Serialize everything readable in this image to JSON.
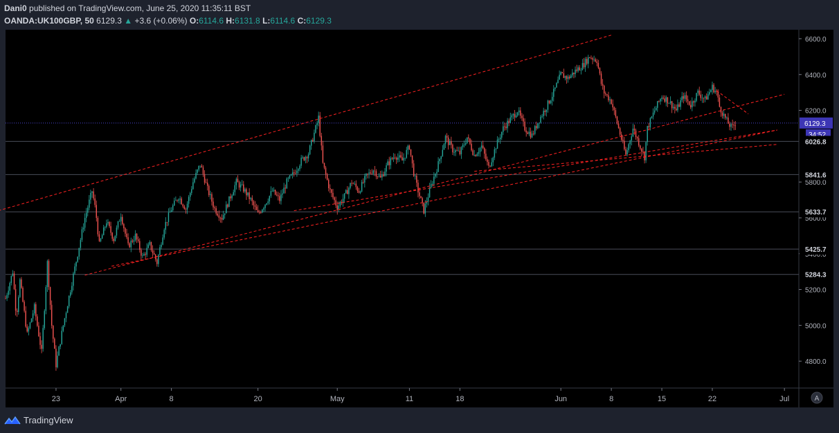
{
  "header": {
    "author": "Dani0",
    "published_text": "published on TradingView.com, June 25, 2020 11:35:11 BST",
    "symbol": "OANDA:UK100GBP, 50",
    "last": "6129.3",
    "change": "+3.6 (+0.06%)",
    "o_label": "O:",
    "o_value": "6114.6",
    "h_label": "H:",
    "h_value": "6131.8",
    "l_label": "L:",
    "l_value": "6114.6",
    "c_label": "C:",
    "c_value": "6129.3"
  },
  "footer": {
    "brand": "TradingView",
    "scale_button": "A"
  },
  "colors": {
    "background": "#000000",
    "frame": "#1e222d",
    "up": "#26a69a",
    "down": "#ef5350",
    "trendline": "#ff2222",
    "price_label": "#3d36b5"
  },
  "chart_data": {
    "type": "candlestick",
    "title": "",
    "xlabel": "",
    "ylabel": "",
    "ylim": [
      4650,
      6650
    ],
    "xlim_days": [
      "Mar 16",
      "Jul 4"
    ],
    "y_ticks": [
      "6600.0",
      "6400.0",
      "6200.0",
      "5800.0",
      "5600.0",
      "5400.0",
      "5200.0",
      "5000.0",
      "4800.0"
    ],
    "y_tick_values": [
      6600,
      6400,
      6200,
      5800,
      5600,
      5400,
      5200,
      5000,
      4800
    ],
    "x_ticks": [
      {
        "label": "23",
        "day": 7
      },
      {
        "label": "Apr",
        "day": 16
      },
      {
        "label": "8",
        "day": 23
      },
      {
        "label": "20",
        "day": 35
      },
      {
        "label": "May",
        "day": 46
      },
      {
        "label": "11",
        "day": 56
      },
      {
        "label": "18",
        "day": 63
      },
      {
        "label": "Jun",
        "day": 77
      },
      {
        "label": "8",
        "day": 84
      },
      {
        "label": "15",
        "day": 91
      },
      {
        "label": "22",
        "day": 98
      },
      {
        "label": "Jul",
        "day": 108
      }
    ],
    "price_labels": [
      {
        "text": "6129.3",
        "value": 6129.3,
        "type": "current",
        "extra": "34:52"
      },
      {
        "text": "6026.8",
        "value": 6026.8,
        "type": "level"
      },
      {
        "text": "5841.6",
        "value": 5841.6,
        "type": "level"
      },
      {
        "text": "5633.7",
        "value": 5633.7,
        "type": "level"
      },
      {
        "text": "5425.7",
        "value": 5425.7,
        "type": "level"
      },
      {
        "text": "5284.3",
        "value": 5284.3,
        "type": "level"
      }
    ],
    "horizontal_levels": [
      6026.8,
      5841.6,
      5633.7,
      5425.7,
      5284.3
    ],
    "current_price": 6129.3,
    "price_path": [
      [
        0,
        5150
      ],
      [
        1,
        5300
      ],
      [
        1.5,
        5050
      ],
      [
        2,
        5250
      ],
      [
        3,
        4950
      ],
      [
        4,
        5100
      ],
      [
        5,
        4850
      ],
      [
        5.8,
        5350
      ],
      [
        6.4,
        5000
      ],
      [
        7,
        4780
      ],
      [
        8,
        5000
      ],
      [
        9,
        5200
      ],
      [
        10,
        5400
      ],
      [
        11,
        5600
      ],
      [
        12,
        5750
      ],
      [
        12.5,
        5640
      ],
      [
        13,
        5450
      ],
      [
        14,
        5580
      ],
      [
        15,
        5480
      ],
      [
        16,
        5620
      ],
      [
        17,
        5440
      ],
      [
        18,
        5500
      ],
      [
        19,
        5380
      ],
      [
        20,
        5450
      ],
      [
        21,
        5350
      ],
      [
        22,
        5550
      ],
      [
        23,
        5650
      ],
      [
        24,
        5720
      ],
      [
        25,
        5650
      ],
      [
        26,
        5800
      ],
      [
        27,
        5900
      ],
      [
        28,
        5760
      ],
      [
        29,
        5650
      ],
      [
        30,
        5600
      ],
      [
        31,
        5700
      ],
      [
        32,
        5800
      ],
      [
        33,
        5760
      ],
      [
        34,
        5700
      ],
      [
        35,
        5620
      ],
      [
        36,
        5680
      ],
      [
        37,
        5750
      ],
      [
        38,
        5700
      ],
      [
        39,
        5800
      ],
      [
        40,
        5850
      ],
      [
        41,
        5920
      ],
      [
        42,
        5960
      ],
      [
        43,
        6100
      ],
      [
        43.4,
        6160
      ],
      [
        44,
        5900
      ],
      [
        45,
        5750
      ],
      [
        46,
        5660
      ],
      [
        47,
        5720
      ],
      [
        48,
        5800
      ],
      [
        49,
        5750
      ],
      [
        50,
        5830
      ],
      [
        51,
        5870
      ],
      [
        52,
        5820
      ],
      [
        53,
        5900
      ],
      [
        54,
        5950
      ],
      [
        55,
        5920
      ],
      [
        56,
        6000
      ],
      [
        56.5,
        5870
      ],
      [
        57,
        5780
      ],
      [
        58,
        5640
      ],
      [
        59,
        5780
      ],
      [
        60,
        5900
      ],
      [
        61,
        6050
      ],
      [
        62,
        5980
      ],
      [
        63,
        5960
      ],
      [
        64,
        6050
      ],
      [
        65,
        5950
      ],
      [
        66,
        6000
      ],
      [
        67,
        5880
      ],
      [
        68,
        6000
      ],
      [
        69,
        6100
      ],
      [
        70,
        6150
      ],
      [
        71,
        6200
      ],
      [
        72,
        6100
      ],
      [
        73,
        6060
      ],
      [
        74,
        6150
      ],
      [
        75,
        6220
      ],
      [
        76,
        6300
      ],
      [
        77,
        6400
      ],
      [
        78,
        6380
      ],
      [
        79,
        6420
      ],
      [
        80,
        6450
      ],
      [
        81,
        6500
      ],
      [
        82,
        6480
      ],
      [
        82.6,
        6350
      ],
      [
        83,
        6300
      ],
      [
        84,
        6250
      ],
      [
        85,
        6100
      ],
      [
        86,
        5950
      ],
      [
        87,
        6100
      ],
      [
        88,
        6000
      ],
      [
        88.6,
        5940
      ],
      [
        89,
        6100
      ],
      [
        90,
        6200
      ],
      [
        91,
        6280
      ],
      [
        92,
        6250
      ],
      [
        93,
        6200
      ],
      [
        94,
        6280
      ],
      [
        95,
        6230
      ],
      [
        96,
        6300
      ],
      [
        97,
        6260
      ],
      [
        98,
        6330
      ],
      [
        98.6,
        6300
      ],
      [
        99,
        6220
      ],
      [
        100,
        6140
      ],
      [
        100.7,
        6100
      ],
      [
        101.2,
        6129.3
      ]
    ],
    "trend_lines": [
      {
        "from": [
          -1,
          5640
        ],
        "to": [
          84,
          6620
        ]
      },
      {
        "from": [
          11,
          5280
        ],
        "to": [
          108,
          6290
        ]
      },
      {
        "from": [
          14.7,
          5330
        ],
        "to": [
          107,
          6090
        ]
      },
      {
        "from": [
          40,
          5640
        ],
        "to": [
          107,
          6090
        ]
      },
      {
        "from": [
          65,
          5860
        ],
        "to": [
          107,
          6010
        ]
      },
      {
        "from": [
          98.6,
          6310
        ],
        "to": [
          103,
          6180
        ]
      }
    ],
    "grid": false
  }
}
